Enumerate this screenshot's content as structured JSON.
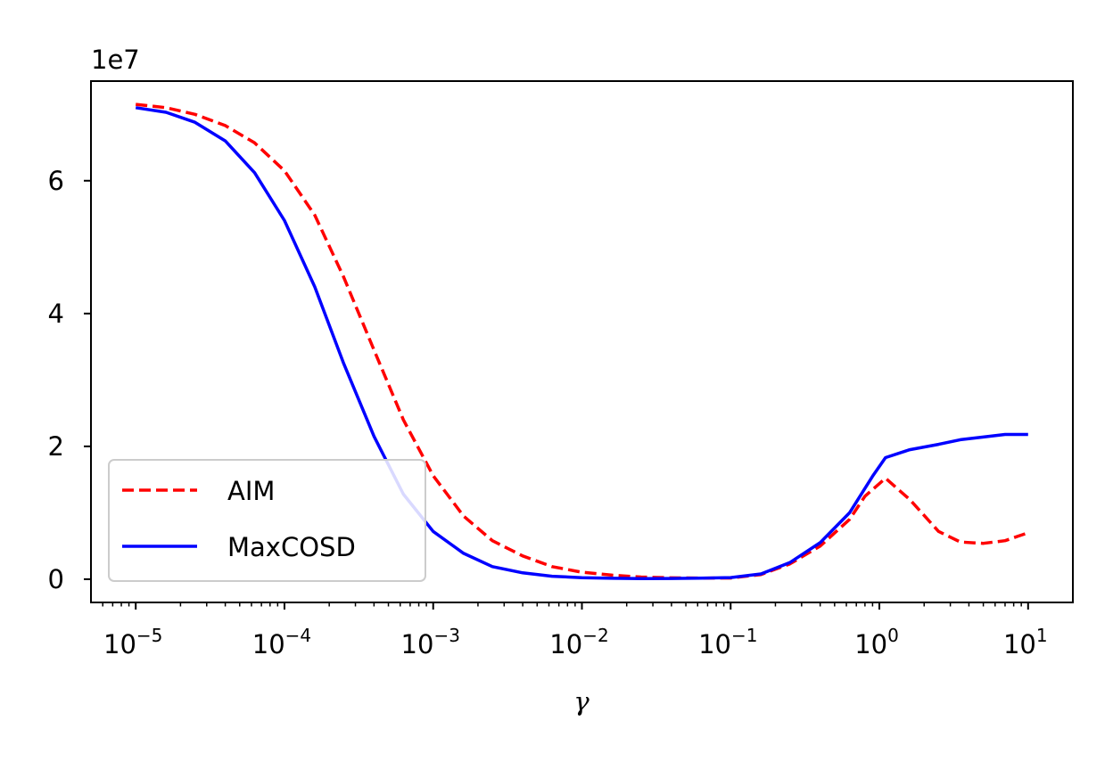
{
  "chart_data": {
    "type": "line",
    "title": "",
    "xlabel": "γ",
    "ylabel": "",
    "x_scale": "log",
    "xlim": [
      5e-06,
      20
    ],
    "ylim": [
      -3500000,
      75000000
    ],
    "y_offset_label": "1e7",
    "grid": false,
    "legend_position": "lower-left",
    "x_ticks": [
      {
        "value": 1e-05,
        "base": "10",
        "exp": "−5"
      },
      {
        "value": 0.0001,
        "base": "10",
        "exp": "−4"
      },
      {
        "value": 0.001,
        "base": "10",
        "exp": "−3"
      },
      {
        "value": 0.01,
        "base": "10",
        "exp": "−2"
      },
      {
        "value": 0.1,
        "base": "10",
        "exp": "−1"
      },
      {
        "value": 1,
        "base": "10",
        "exp": "0"
      },
      {
        "value": 10,
        "base": "10",
        "exp": "1"
      }
    ],
    "y_ticks": [
      {
        "value": 0,
        "label": "0"
      },
      {
        "value": 20000000,
        "label": "2"
      },
      {
        "value": 40000000,
        "label": "4"
      },
      {
        "value": 60000000,
        "label": "6"
      }
    ],
    "series": [
      {
        "name": "AIM",
        "color": "#ff0000",
        "style": "dashed",
        "x": [
          1e-05,
          1.6e-05,
          2.5e-05,
          4e-05,
          6.3e-05,
          0.0001,
          0.00016,
          0.00025,
          0.0004,
          0.00063,
          0.001,
          0.0016,
          0.0025,
          0.004,
          0.0063,
          0.01,
          0.016,
          0.025,
          0.04,
          0.063,
          0.1,
          0.16,
          0.25,
          0.4,
          0.63,
          0.8,
          1.1,
          1.6,
          2.5,
          3.5,
          5,
          7,
          10
        ],
        "y": [
          71500000,
          71000000,
          70000000,
          68300000,
          65700000,
          61500000,
          54800000,
          45500000,
          34500000,
          24000000,
          15600000,
          9500000,
          5800000,
          3500000,
          1900000,
          1050000,
          600000,
          330000,
          210000,
          160000,
          180000,
          700000,
          2300000,
          5000000,
          9000000,
          12500000,
          15200000,
          12000000,
          7200000,
          5600000,
          5400000,
          5800000,
          7000000
        ]
      },
      {
        "name": "MaxCOSD",
        "color": "#0000ff",
        "style": "solid",
        "x": [
          1e-05,
          1.6e-05,
          2.5e-05,
          4e-05,
          6.3e-05,
          0.0001,
          0.00016,
          0.00025,
          0.0004,
          0.00063,
          0.001,
          0.0016,
          0.0025,
          0.004,
          0.0063,
          0.01,
          0.016,
          0.025,
          0.04,
          0.063,
          0.1,
          0.16,
          0.25,
          0.4,
          0.63,
          0.9,
          1.1,
          1.6,
          2.5,
          3.5,
          5,
          7,
          10
        ],
        "y": [
          71000000,
          70300000,
          68800000,
          66000000,
          61200000,
          54000000,
          44000000,
          32500000,
          21500000,
          12800000,
          7200000,
          3900000,
          1900000,
          950000,
          450000,
          230000,
          130000,
          100000,
          110000,
          160000,
          250000,
          800000,
          2500000,
          5500000,
          10000000,
          15500000,
          18300000,
          19500000,
          20300000,
          21000000,
          21400000,
          21800000,
          21800000
        ]
      }
    ]
  }
}
